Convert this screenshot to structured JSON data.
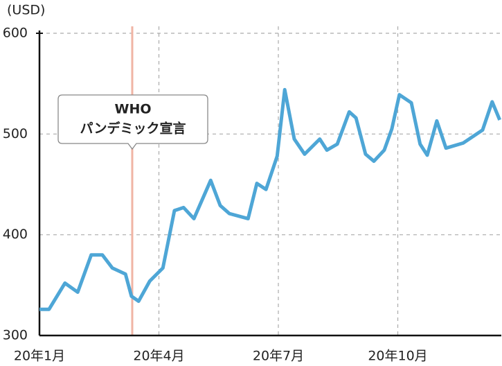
{
  "chart_data": {
    "type": "line",
    "y_unit": "(USD)",
    "x": [
      0,
      0.24,
      0.64,
      0.96,
      1.3,
      1.58,
      1.83,
      2.16,
      2.31,
      2.49,
      2.77,
      3.1,
      3.39,
      3.62,
      3.88,
      4.3,
      4.54,
      4.77,
      5.24,
      5.46,
      5.69,
      5.97,
      6.16,
      6.4,
      6.66,
      7.04,
      7.22,
      7.48,
      7.78,
      7.95,
      8.19,
      8.4,
      8.66,
      8.85,
      9.04,
      9.34,
      9.56,
      9.74,
      9.98,
      10.21,
      10.64,
      11.13,
      11.37,
      11.56
    ],
    "series": [
      {
        "color": "#4ea6d6",
        "values": [
          326,
          326,
          352,
          343,
          380,
          380,
          367,
          361,
          339,
          334,
          354,
          367,
          424,
          427,
          416,
          454,
          429,
          421,
          416,
          451,
          445,
          478,
          544,
          495,
          480,
          495,
          484,
          490,
          522,
          516,
          480,
          473,
          484,
          505,
          539,
          531,
          490,
          479,
          513,
          486,
          491,
          504,
          532,
          514
        ]
      }
    ],
    "xlim": [
      0,
      11.6
    ],
    "xticks": [
      {
        "value": 0,
        "label": "20年1月"
      },
      {
        "value": 3,
        "label": "20年4月"
      },
      {
        "value": 6,
        "label": "20年7月"
      },
      {
        "value": 9,
        "label": "20年10月"
      }
    ],
    "ylim": [
      300,
      600
    ],
    "yticks": [
      300,
      400,
      500,
      600
    ],
    "grid": true,
    "event": {
      "x": 2.33,
      "color": "#f0b4a4",
      "label": [
        "WHO",
        "パンデミック宣言"
      ]
    }
  }
}
